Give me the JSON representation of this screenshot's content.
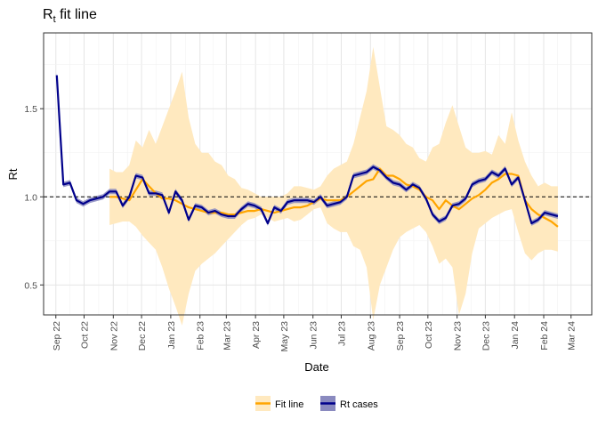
{
  "chart_data": {
    "type": "line",
    "title": "R",
    "title_subscript": "t",
    "title_suffix": " fit line",
    "xlabel": "Date",
    "ylabel": "Rt",
    "x_tick_labels": [
      "Sep 22",
      "Oct 22",
      "Nov 22",
      "Dec 22",
      "Jan 23",
      "Feb 23",
      "Mar 23",
      "Apr 23",
      "May 23",
      "Jun 23",
      "Jul 23",
      "Aug 23",
      "Sep 23",
      "Oct 23",
      "Nov 23",
      "Dec 23",
      "Jan 24",
      "Feb 24",
      "Mar 24"
    ],
    "y_ticks": [
      0.5,
      1.0,
      1.5
    ],
    "y_tick_labels": [
      "0.5",
      "1.0",
      "1.5"
    ],
    "ylim": [
      0.33,
      1.93
    ],
    "xlim": [
      "2022-08-19",
      "2024-03-23"
    ],
    "reference_line": {
      "y": 1.0,
      "style": "dashed"
    },
    "grid": true,
    "legend_position": "bottom",
    "colors": {
      "fit": "#FFA500",
      "fit_ribbon": "#FFE9BF",
      "rt": "#00008B",
      "rt_ribbon": "#8A8ABF"
    },
    "series": [
      {
        "name": "Rt cases",
        "x": [
          "2022-09-02",
          "2022-09-09",
          "2022-09-16",
          "2022-09-23",
          "2022-09-30",
          "2022-10-07",
          "2022-10-14",
          "2022-10-21",
          "2022-10-28",
          "2022-11-04",
          "2022-11-11",
          "2022-11-18",
          "2022-11-25",
          "2022-12-02",
          "2022-12-09",
          "2022-12-16",
          "2022-12-23",
          "2022-12-30",
          "2023-01-06",
          "2023-01-13",
          "2023-01-20",
          "2023-01-27",
          "2023-02-03",
          "2023-02-10",
          "2023-02-17",
          "2023-02-24",
          "2023-03-03",
          "2023-03-10",
          "2023-03-17",
          "2023-03-24",
          "2023-03-31",
          "2023-04-07",
          "2023-04-14",
          "2023-04-21",
          "2023-04-28",
          "2023-05-05",
          "2023-05-12",
          "2023-05-19",
          "2023-05-26",
          "2023-06-02",
          "2023-06-09",
          "2023-06-16",
          "2023-06-23",
          "2023-06-30",
          "2023-07-07",
          "2023-07-14",
          "2023-07-21",
          "2023-07-28",
          "2023-08-04",
          "2023-08-11",
          "2023-08-18",
          "2023-08-25",
          "2023-09-01",
          "2023-09-08",
          "2023-09-15",
          "2023-09-22",
          "2023-09-29",
          "2023-10-06",
          "2023-10-13",
          "2023-10-20",
          "2023-10-27",
          "2023-11-03",
          "2023-11-10",
          "2023-11-17",
          "2023-11-24",
          "2023-12-01",
          "2023-12-08",
          "2023-12-15",
          "2023-12-22",
          "2023-12-29",
          "2024-01-05",
          "2024-01-12",
          "2024-01-19",
          "2024-01-26",
          "2024-02-02",
          "2024-02-09",
          "2024-02-16"
        ],
        "values": [
          1.69,
          1.07,
          1.08,
          0.98,
          0.96,
          0.98,
          0.99,
          1.0,
          1.03,
          1.03,
          0.95,
          1.0,
          1.12,
          1.11,
          1.02,
          1.02,
          1.01,
          0.91,
          1.03,
          0.98,
          0.87,
          0.95,
          0.94,
          0.91,
          0.92,
          0.9,
          0.89,
          0.89,
          0.93,
          0.96,
          0.95,
          0.93,
          0.85,
          0.94,
          0.92,
          0.97,
          0.98,
          0.98,
          0.98,
          0.97,
          1.0,
          0.95,
          0.96,
          0.97,
          1.0,
          1.12,
          1.13,
          1.14,
          1.17,
          1.15,
          1.11,
          1.08,
          1.07,
          1.04,
          1.07,
          1.05,
          0.99,
          0.9,
          0.86,
          0.88,
          0.95,
          0.96,
          0.99,
          1.07,
          1.09,
          1.1,
          1.14,
          1.12,
          1.16,
          1.07,
          1.11,
          0.98,
          0.85,
          0.87,
          0.91,
          0.9,
          0.89
        ],
        "ribbon_halfwidth": 0.015
      },
      {
        "name": "Fit line",
        "x": [
          "2022-10-28",
          "2022-11-04",
          "2022-11-11",
          "2022-11-18",
          "2022-11-25",
          "2022-12-02",
          "2022-12-09",
          "2022-12-16",
          "2022-12-23",
          "2022-12-30",
          "2023-01-06",
          "2023-01-13",
          "2023-01-20",
          "2023-01-27",
          "2023-02-03",
          "2023-02-10",
          "2023-02-17",
          "2023-02-24",
          "2023-03-03",
          "2023-03-10",
          "2023-03-17",
          "2023-03-24",
          "2023-03-31",
          "2023-04-07",
          "2023-04-14",
          "2023-04-21",
          "2023-04-28",
          "2023-05-05",
          "2023-05-12",
          "2023-05-19",
          "2023-05-26",
          "2023-06-02",
          "2023-06-09",
          "2023-06-16",
          "2023-06-23",
          "2023-06-30",
          "2023-07-07",
          "2023-07-14",
          "2023-07-21",
          "2023-07-28",
          "2023-08-04",
          "2023-08-11",
          "2023-08-18",
          "2023-08-25",
          "2023-09-01",
          "2023-09-08",
          "2023-09-15",
          "2023-09-22",
          "2023-09-29",
          "2023-10-06",
          "2023-10-13",
          "2023-10-20",
          "2023-10-27",
          "2023-11-03",
          "2023-11-10",
          "2023-11-17",
          "2023-11-24",
          "2023-12-01",
          "2023-12-08",
          "2023-12-15",
          "2023-12-22",
          "2023-12-29",
          "2024-01-05",
          "2024-01-12",
          "2024-01-19",
          "2024-01-26",
          "2024-02-02",
          "2024-02-09",
          "2024-02-16"
        ],
        "values": [
          1.0,
          1.0,
          0.99,
          0.98,
          1.04,
          1.1,
          1.06,
          1.02,
          0.99,
          0.99,
          0.98,
          0.96,
          0.94,
          0.93,
          0.92,
          0.91,
          0.91,
          0.91,
          0.9,
          0.9,
          0.91,
          0.92,
          0.92,
          0.93,
          0.92,
          0.91,
          0.92,
          0.93,
          0.94,
          0.94,
          0.95,
          0.97,
          0.99,
          0.98,
          0.98,
          0.98,
          1.0,
          1.03,
          1.06,
          1.09,
          1.1,
          1.16,
          1.12,
          1.12,
          1.1,
          1.07,
          1.06,
          1.04,
          1.0,
          0.98,
          0.93,
          0.98,
          0.95,
          0.93,
          0.96,
          0.99,
          1.01,
          1.04,
          1.08,
          1.1,
          1.13,
          1.13,
          1.12,
          0.98,
          0.93,
          0.9,
          0.88,
          0.86,
          0.83
        ],
        "lower": [
          0.84,
          0.85,
          0.86,
          0.86,
          0.83,
          0.78,
          0.74,
          0.7,
          0.6,
          0.48,
          0.38,
          0.27,
          0.45,
          0.58,
          0.62,
          0.65,
          0.68,
          0.72,
          0.76,
          0.8,
          0.84,
          0.87,
          0.88,
          0.9,
          0.88,
          0.86,
          0.87,
          0.88,
          0.86,
          0.87,
          0.9,
          0.93,
          0.94,
          0.85,
          0.82,
          0.8,
          0.8,
          0.72,
          0.7,
          0.6,
          0.3,
          0.5,
          0.6,
          0.7,
          0.77,
          0.8,
          0.82,
          0.84,
          0.8,
          0.72,
          0.62,
          0.65,
          0.6,
          0.33,
          0.45,
          0.68,
          0.82,
          0.85,
          0.88,
          0.9,
          0.92,
          0.93,
          0.8,
          0.68,
          0.64,
          0.68,
          0.7,
          0.7,
          0.69
        ],
        "upper": [
          1.16,
          1.14,
          1.14,
          1.18,
          1.32,
          1.28,
          1.38,
          1.3,
          1.4,
          1.5,
          1.6,
          1.71,
          1.45,
          1.3,
          1.25,
          1.25,
          1.2,
          1.18,
          1.12,
          1.1,
          1.05,
          1.04,
          1.02,
          1.0,
          1.0,
          1.0,
          1.0,
          1.02,
          1.06,
          1.06,
          1.05,
          1.04,
          1.06,
          1.12,
          1.16,
          1.18,
          1.2,
          1.3,
          1.45,
          1.6,
          1.85,
          1.62,
          1.4,
          1.38,
          1.35,
          1.3,
          1.28,
          1.22,
          1.2,
          1.28,
          1.3,
          1.42,
          1.52,
          1.4,
          1.28,
          1.25,
          1.25,
          1.26,
          1.24,
          1.35,
          1.3,
          1.48,
          1.32,
          1.2,
          1.12,
          1.06,
          1.08,
          1.06,
          1.06
        ]
      }
    ]
  }
}
